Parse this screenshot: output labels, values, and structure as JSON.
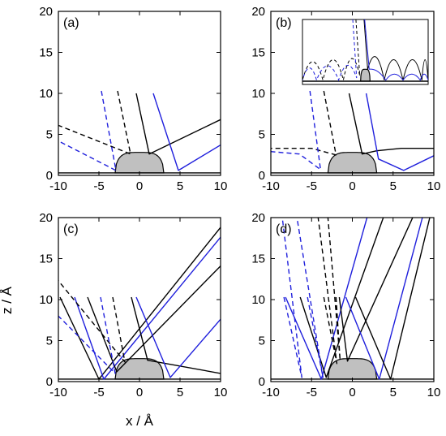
{
  "figure": {
    "xlabel": "x / Å",
    "ylabel": "z / Å",
    "colors": {
      "black": "#000000",
      "blue": "#1f1fdc",
      "bump": "#c0c0c0",
      "surface": "#000000"
    }
  },
  "chart_data": [
    {
      "type": "line",
      "label": "(a)",
      "xlim": [
        -10,
        10
      ],
      "ylim": [
        0,
        20
      ],
      "xticks": [
        -10,
        -5,
        0,
        5,
        10
      ],
      "yticks": [
        0,
        5,
        10,
        15,
        20
      ],
      "xtick_labels": [
        "-10",
        "-5",
        "0",
        "5",
        "10"
      ],
      "ytick_labels": [
        "0",
        "5",
        "10",
        "15",
        "20"
      ],
      "surface": {
        "z": 0.3,
        "bump_center": 0,
        "bump_radius": 3,
        "bump_height": 2.8
      },
      "series": [
        {
          "color": "#000000",
          "dash": false,
          "x": [
            -0.4,
            1.2,
            10
          ],
          "z": [
            10,
            2.6,
            6.8
          ]
        },
        {
          "color": "#1f1fdc",
          "dash": false,
          "x": [
            1.7,
            4.8,
            10
          ],
          "z": [
            10,
            0.6,
            3.7
          ]
        },
        {
          "color": "#000000",
          "dash": true,
          "x": [
            -2.7,
            -1.1,
            -10
          ],
          "z": [
            10.3,
            2.6,
            6.1
          ]
        },
        {
          "color": "#1f1fdc",
          "dash": true,
          "x": [
            -4.7,
            -2.9,
            -10
          ],
          "z": [
            10.3,
            0.6,
            4.2
          ]
        }
      ]
    },
    {
      "type": "line",
      "label": "(b)",
      "xlim": [
        -10,
        10
      ],
      "ylim": [
        0,
        20
      ],
      "xticks": [
        -10,
        -5,
        0,
        5,
        10
      ],
      "yticks": [
        0,
        5,
        10,
        15,
        20
      ],
      "xtick_labels": [
        "-10",
        "-5",
        "0",
        "5",
        "10"
      ],
      "ytick_labels": [
        "0",
        "5",
        "10",
        "15",
        "20"
      ],
      "surface": {
        "z": 0.3,
        "bump_center": 0,
        "bump_radius": 3,
        "bump_height": 2.8
      },
      "series": [
        {
          "color": "#000000",
          "dash": false,
          "x": [
            -0.4,
            1.2,
            3,
            6,
            10
          ],
          "z": [
            10,
            2.6,
            3.0,
            3.3,
            3.3
          ]
        },
        {
          "color": "#1f1fdc",
          "dash": false,
          "x": [
            1.7,
            3.2,
            6.3,
            10
          ],
          "z": [
            10,
            2.0,
            0.6,
            2.4
          ]
        },
        {
          "color": "#000000",
          "dash": true,
          "x": [
            -3.5,
            -2.0,
            -5,
            -10
          ],
          "z": [
            10.3,
            2.5,
            3.3,
            3.3
          ]
        },
        {
          "color": "#1f1fdc",
          "dash": true,
          "x": [
            -5.2,
            -3.9,
            -6.5,
            -10
          ],
          "z": [
            10.3,
            0.7,
            2.6,
            2.9
          ]
        }
      ],
      "inset": {
        "xlim": [
          -40,
          40
        ],
        "ylim": [
          0,
          30
        ],
        "surface": {
          "z": 1.5,
          "bump_center": 0,
          "bump_radius": 3,
          "bump_height": 7
        },
        "series": [
          {
            "color": "#000000",
            "dash": false,
            "x": [
              -0.8,
              1.5,
              12,
              24,
              36,
              40
            ],
            "z": [
              30,
              7,
              11,
              11,
              11,
              11
            ]
          },
          {
            "color": "#1f1fdc",
            "dash": false,
            "x": [
              -0.4,
              2.5,
              13,
              24,
              35,
              40
            ],
            "z": [
              30,
              7,
              4,
              4,
              4,
              4
            ]
          },
          {
            "color": "#000000",
            "dash": true,
            "x": [
              -6,
              -3.5,
              -14,
              -27,
              -40
            ],
            "z": [
              30,
              4,
              11,
              11,
              10
            ]
          },
          {
            "color": "#1f1fdc",
            "dash": true,
            "x": [
              -8,
              -5.5,
              -17,
              -31,
              -40
            ],
            "z": [
              30,
              3,
              8,
              8,
              7
            ]
          }
        ]
      }
    },
    {
      "type": "line",
      "label": "(c)",
      "xlim": [
        -10,
        10
      ],
      "ylim": [
        0,
        20
      ],
      "xticks": [
        -10,
        -5,
        0,
        5,
        10
      ],
      "yticks": [
        0,
        5,
        10,
        15,
        20
      ],
      "xtick_labels": [
        "-10",
        "-5",
        "0",
        "5",
        "10"
      ],
      "ytick_labels": [
        "0",
        "5",
        "10",
        "15",
        "20"
      ],
      "surface": {
        "z": 0.3,
        "bump_center": 0,
        "bump_radius": 3,
        "bump_height": 2.8
      },
      "series": [
        {
          "color": "#000000",
          "dash": false,
          "x": [
            -9.8,
            -5.0,
            10
          ],
          "z": [
            10.3,
            0.3,
            18.8
          ]
        },
        {
          "color": "#1f1fdc",
          "dash": false,
          "x": [
            -8.0,
            -4.4,
            10
          ],
          "z": [
            10.3,
            0.3,
            17.6
          ]
        },
        {
          "color": "#000000",
          "dash": false,
          "x": [
            -6.4,
            -2.8,
            10
          ],
          "z": [
            10.3,
            1.2,
            14.1
          ]
        },
        {
          "color": "#000000",
          "dash": false,
          "x": [
            -1.0,
            1.0,
            10
          ],
          "z": [
            10.3,
            2.6,
            1.0
          ]
        },
        {
          "color": "#1f1fdc",
          "dash": false,
          "x": [
            -0.4,
            3.8,
            10
          ],
          "z": [
            10.3,
            0.5,
            7.6
          ]
        },
        {
          "color": "#000000",
          "dash": true,
          "x": [
            -3.3,
            -1.8,
            -10
          ],
          "z": [
            10.3,
            2.4,
            12.3
          ]
        },
        {
          "color": "#1f1fdc",
          "dash": true,
          "x": [
            -4.8,
            -3.0,
            -10
          ],
          "z": [
            10.3,
            1.0,
            8.0
          ]
        }
      ]
    },
    {
      "type": "line",
      "label": "(d)",
      "xlim": [
        -10,
        10
      ],
      "ylim": [
        0,
        20
      ],
      "xticks": [
        -10,
        -5,
        0,
        5,
        10
      ],
      "yticks": [
        0,
        5,
        10,
        15,
        20
      ],
      "xtick_labels": [
        "-10",
        "-5",
        "0",
        "5",
        "10"
      ],
      "ytick_labels": [
        "0",
        "5",
        "10",
        "15",
        "20"
      ],
      "surface": {
        "z": 0.3,
        "bump_center": 0,
        "bump_radius": 3,
        "bump_height": 2.8
      },
      "series": [
        {
          "color": "#1f1fdc",
          "dash": false,
          "x": [
            -8.2,
            -3.8,
            1.8
          ],
          "z": [
            10.3,
            0.3,
            20
          ]
        },
        {
          "color": "#000000",
          "dash": false,
          "x": [
            -6.4,
            -3.2,
            3.8
          ],
          "z": [
            10.3,
            0.5,
            20
          ]
        },
        {
          "color": "#000000",
          "dash": false,
          "x": [
            -1.6,
            -0.6,
            7.4
          ],
          "z": [
            10.3,
            2.5,
            20
          ]
        },
        {
          "color": "#1f1fdc",
          "dash": false,
          "x": [
            -0.8,
            3.3,
            8.6
          ],
          "z": [
            10.3,
            0.3,
            20
          ]
        },
        {
          "color": "#000000",
          "dash": false,
          "x": [
            0.4,
            4.7,
            9.5
          ],
          "z": [
            10.3,
            0.3,
            20
          ]
        },
        {
          "color": "#000000",
          "dash": true,
          "x": [
            -3.5,
            -1.9,
            -4.2
          ],
          "z": [
            10.3,
            2.2,
            20
          ]
        },
        {
          "color": "#1f1fdc",
          "dash": true,
          "x": [
            -5.5,
            -3.6,
            -6.8
          ],
          "z": [
            10.3,
            0.5,
            20
          ]
        },
        {
          "color": "#1f1fdc",
          "dash": true,
          "x": [
            -8.4,
            -6.2,
            -8.6
          ],
          "z": [
            10.3,
            0.5,
            20
          ]
        },
        {
          "color": "#000000",
          "dash": true,
          "x": [
            -2.0,
            -1.5,
            -3.0
          ],
          "z": [
            10.3,
            2.6,
            20
          ]
        }
      ]
    }
  ]
}
